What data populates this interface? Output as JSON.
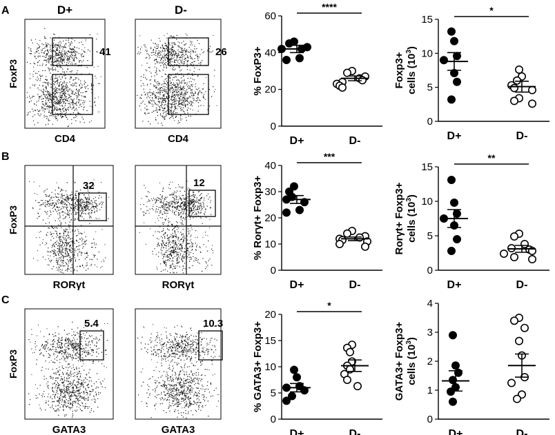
{
  "figure": {
    "panels": [
      {
        "letter": "A",
        "flow_left_title": "D+",
        "flow_right_title": "D-"
      },
      {
        "letter": "B"
      },
      {
        "letter": "C"
      }
    ]
  },
  "flow_plots": [
    {
      "id": "A1",
      "ylabel": "FoxP3",
      "xlabel": "CD4",
      "numbers": [
        "41"
      ]
    },
    {
      "id": "A2",
      "ylabel": "",
      "xlabel": "CD4",
      "numbers": [
        "26"
      ]
    },
    {
      "id": "B1",
      "ylabel": "FoxP3",
      "xlabel": "RORγt",
      "numbers": [
        "32"
      ]
    },
    {
      "id": "B2",
      "ylabel": "",
      "xlabel": "RORγt",
      "numbers": [
        "12"
      ]
    },
    {
      "id": "C1",
      "ylabel": "FoxP3",
      "xlabel": "GATA3",
      "numbers": [
        "5.4"
      ]
    },
    {
      "id": "C2",
      "ylabel": "",
      "xlabel": "GATA3",
      "numbers": [
        "10.3"
      ]
    }
  ],
  "chart_data": [
    {
      "type": "scatter",
      "id": "A-pct",
      "ylabel": "% FoxP3+",
      "ylabel_sup": "",
      "ylabel_line2": "",
      "ylim": [
        0,
        60
      ],
      "ticks": [
        0,
        20,
        40,
        60
      ],
      "categories": [
        "D+",
        "D-"
      ],
      "significance": "****",
      "series": [
        {
          "name": "D+",
          "filled": true,
          "mean": 42,
          "sem": 2,
          "values": [
            46,
            45,
            43,
            42,
            42,
            37,
            36
          ]
        },
        {
          "name": "D-",
          "filled": false,
          "mean": 26,
          "sem": 1.3,
          "values": [
            30,
            29,
            27,
            26,
            25,
            24,
            23,
            22,
            21
          ]
        }
      ]
    },
    {
      "type": "scatter",
      "id": "A-count",
      "ylabel": "Foxp3+",
      "ylabel_sup": "",
      "ylabel_line2": "cells (10",
      "ylabel_line2_sup": "3",
      "ylabel_line2_end": ")",
      "ylim": [
        0,
        15
      ],
      "ticks": [
        0,
        5,
        10,
        15
      ],
      "categories": [
        "D+",
        "D-"
      ],
      "significance": "*",
      "series": [
        {
          "name": "D+",
          "filled": true,
          "mean": 8.8,
          "sem": 1.3,
          "values": [
            13.2,
            11.8,
            9.6,
            9.0,
            7.1,
            5.8,
            3.2
          ]
        },
        {
          "name": "D-",
          "filled": false,
          "mean": 5.1,
          "sem": 0.8,
          "values": [
            7.6,
            6.6,
            6.0,
            5.3,
            4.9,
            4.6,
            3.4,
            3.0,
            2.6
          ]
        }
      ]
    },
    {
      "type": "scatter",
      "id": "B-pct",
      "ylabel": "% Rorγt+ Foxp3+",
      "ylabel_sup": "",
      "ylabel_line2": "",
      "ylim": [
        0,
        40
      ],
      "ticks": [
        0,
        10,
        20,
        30,
        40
      ],
      "categories": [
        "D+",
        "D-"
      ],
      "significance": "***",
      "series": [
        {
          "name": "D+",
          "filled": true,
          "mean": 27,
          "sem": 1.5,
          "values": [
            32,
            30,
            28,
            27,
            26,
            23,
            22
          ]
        },
        {
          "name": "D-",
          "filled": false,
          "mean": 12,
          "sem": 0.7,
          "values": [
            15,
            14,
            13,
            12.5,
            12,
            11.5,
            11,
            10,
            9
          ]
        }
      ]
    },
    {
      "type": "scatter",
      "id": "B-count",
      "ylabel": "Rorγt+ Foxp3+",
      "ylabel_sup": "",
      "ylabel_line2": "cells (10",
      "ylabel_line2_sup": "3",
      "ylabel_line2_end": ")",
      "ylim": [
        0,
        15
      ],
      "ticks": [
        0,
        5,
        10,
        15
      ],
      "categories": [
        "D+",
        "D-"
      ],
      "significance": "**",
      "series": [
        {
          "name": "D+",
          "filled": true,
          "mean": 7.5,
          "sem": 1.3,
          "values": [
            13.1,
            9.8,
            8.2,
            7.5,
            6.5,
            4.5,
            2.8
          ]
        },
        {
          "name": "D-",
          "filled": false,
          "mean": 3.1,
          "sem": 0.5,
          "values": [
            5.3,
            4.9,
            3.8,
            3.2,
            3.0,
            2.8,
            2.4,
            1.9,
            1.6
          ]
        }
      ]
    },
    {
      "type": "scatter",
      "id": "C-pct",
      "ylabel": "% GATA3+ Foxp3+",
      "ylabel_sup": "",
      "ylabel_line2": "",
      "ylim": [
        0,
        20
      ],
      "ticks": [
        0,
        5,
        10,
        15,
        20
      ],
      "categories": [
        "D+",
        "D-"
      ],
      "significance": "*",
      "series": [
        {
          "name": "D+",
          "filled": true,
          "mean": 6,
          "sem": 0.8,
          "values": [
            9.4,
            8.0,
            6.3,
            6.0,
            5.5,
            4.4,
            3.5
          ]
        },
        {
          "name": "D-",
          "filled": false,
          "mean": 10.2,
          "sem": 1.1,
          "values": [
            14.2,
            13.6,
            12.8,
            11.0,
            10.2,
            9.5,
            8.6,
            7.5,
            6.3
          ]
        }
      ]
    },
    {
      "type": "scatter",
      "id": "C-count",
      "ylabel": "GATA3+ Foxp3+",
      "ylabel_sup": "",
      "ylabel_line2": "cells (10",
      "ylabel_line2_sup": "3",
      "ylabel_line2_end": ")",
      "ylim": [
        0,
        4
      ],
      "ticks": [
        0,
        1,
        2,
        3,
        4
      ],
      "categories": [
        "D+",
        "D-"
      ],
      "significance": "",
      "series": [
        {
          "name": "D+",
          "filled": true,
          "mean": 1.32,
          "sem": 0.35,
          "values": [
            2.9,
            1.85,
            1.6,
            1.35,
            1.1,
            0.95,
            0.6
          ]
        },
        {
          "name": "D-",
          "filled": false,
          "mean": 1.85,
          "sem": 0.4,
          "values": [
            3.5,
            3.4,
            3.15,
            2.7,
            2.2,
            1.45,
            1.25,
            0.85,
            0.7
          ]
        }
      ]
    }
  ]
}
